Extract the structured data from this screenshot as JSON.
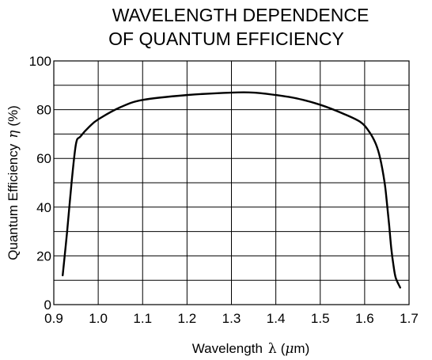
{
  "chart_data": {
    "type": "line",
    "title_lines": [
      "WAVELENGTH DEPENDENCE",
      "OF QUANTUM EFFICIENCY"
    ],
    "xlabel": "Wavelength λ (μm)",
    "xlabel_parts": {
      "text": "Wavelength",
      "symbol": "λ",
      "open": "(",
      "prefix": "μ",
      "unit": "m)"
    },
    "ylabel": "Quantum Efficiency η (%)",
    "ylabel_parts": {
      "text": "Quantum Efficiency",
      "symbol": "η",
      "unit": "(%)"
    },
    "xlim": [
      0.9,
      1.7
    ],
    "ylim": [
      0,
      100
    ],
    "x_ticks": [
      0.9,
      1.0,
      1.1,
      1.2,
      1.3,
      1.4,
      1.5,
      1.6,
      1.7
    ],
    "x_tick_labels": [
      "0.9",
      "1.0",
      "1.1",
      "1.2",
      "1.3",
      "1.4",
      "1.5",
      "1.6",
      "1.7"
    ],
    "y_ticks": [
      0,
      20,
      40,
      60,
      80,
      100
    ],
    "y_tick_labels": [
      "0",
      "20",
      "40",
      "60",
      "80",
      "100"
    ],
    "grid": true,
    "x_grid_step": 0.1,
    "y_grid_step": 10,
    "series": [
      {
        "x": [
          0.92,
          0.93,
          0.94,
          0.95,
          0.96,
          0.98,
          1.0,
          1.05,
          1.1,
          1.2,
          1.3,
          1.35,
          1.4,
          1.45,
          1.5,
          1.55,
          1.59,
          1.61,
          1.625,
          1.635,
          1.645,
          1.65,
          1.655,
          1.66,
          1.665,
          1.67,
          1.68
        ],
        "y": [
          12,
          30,
          50,
          66,
          69,
          73,
          76,
          81,
          84,
          86,
          87,
          87,
          86,
          84.5,
          82,
          78.5,
          75,
          71,
          66,
          60,
          50,
          42,
          33,
          23,
          16,
          11,
          7
        ]
      }
    ]
  }
}
